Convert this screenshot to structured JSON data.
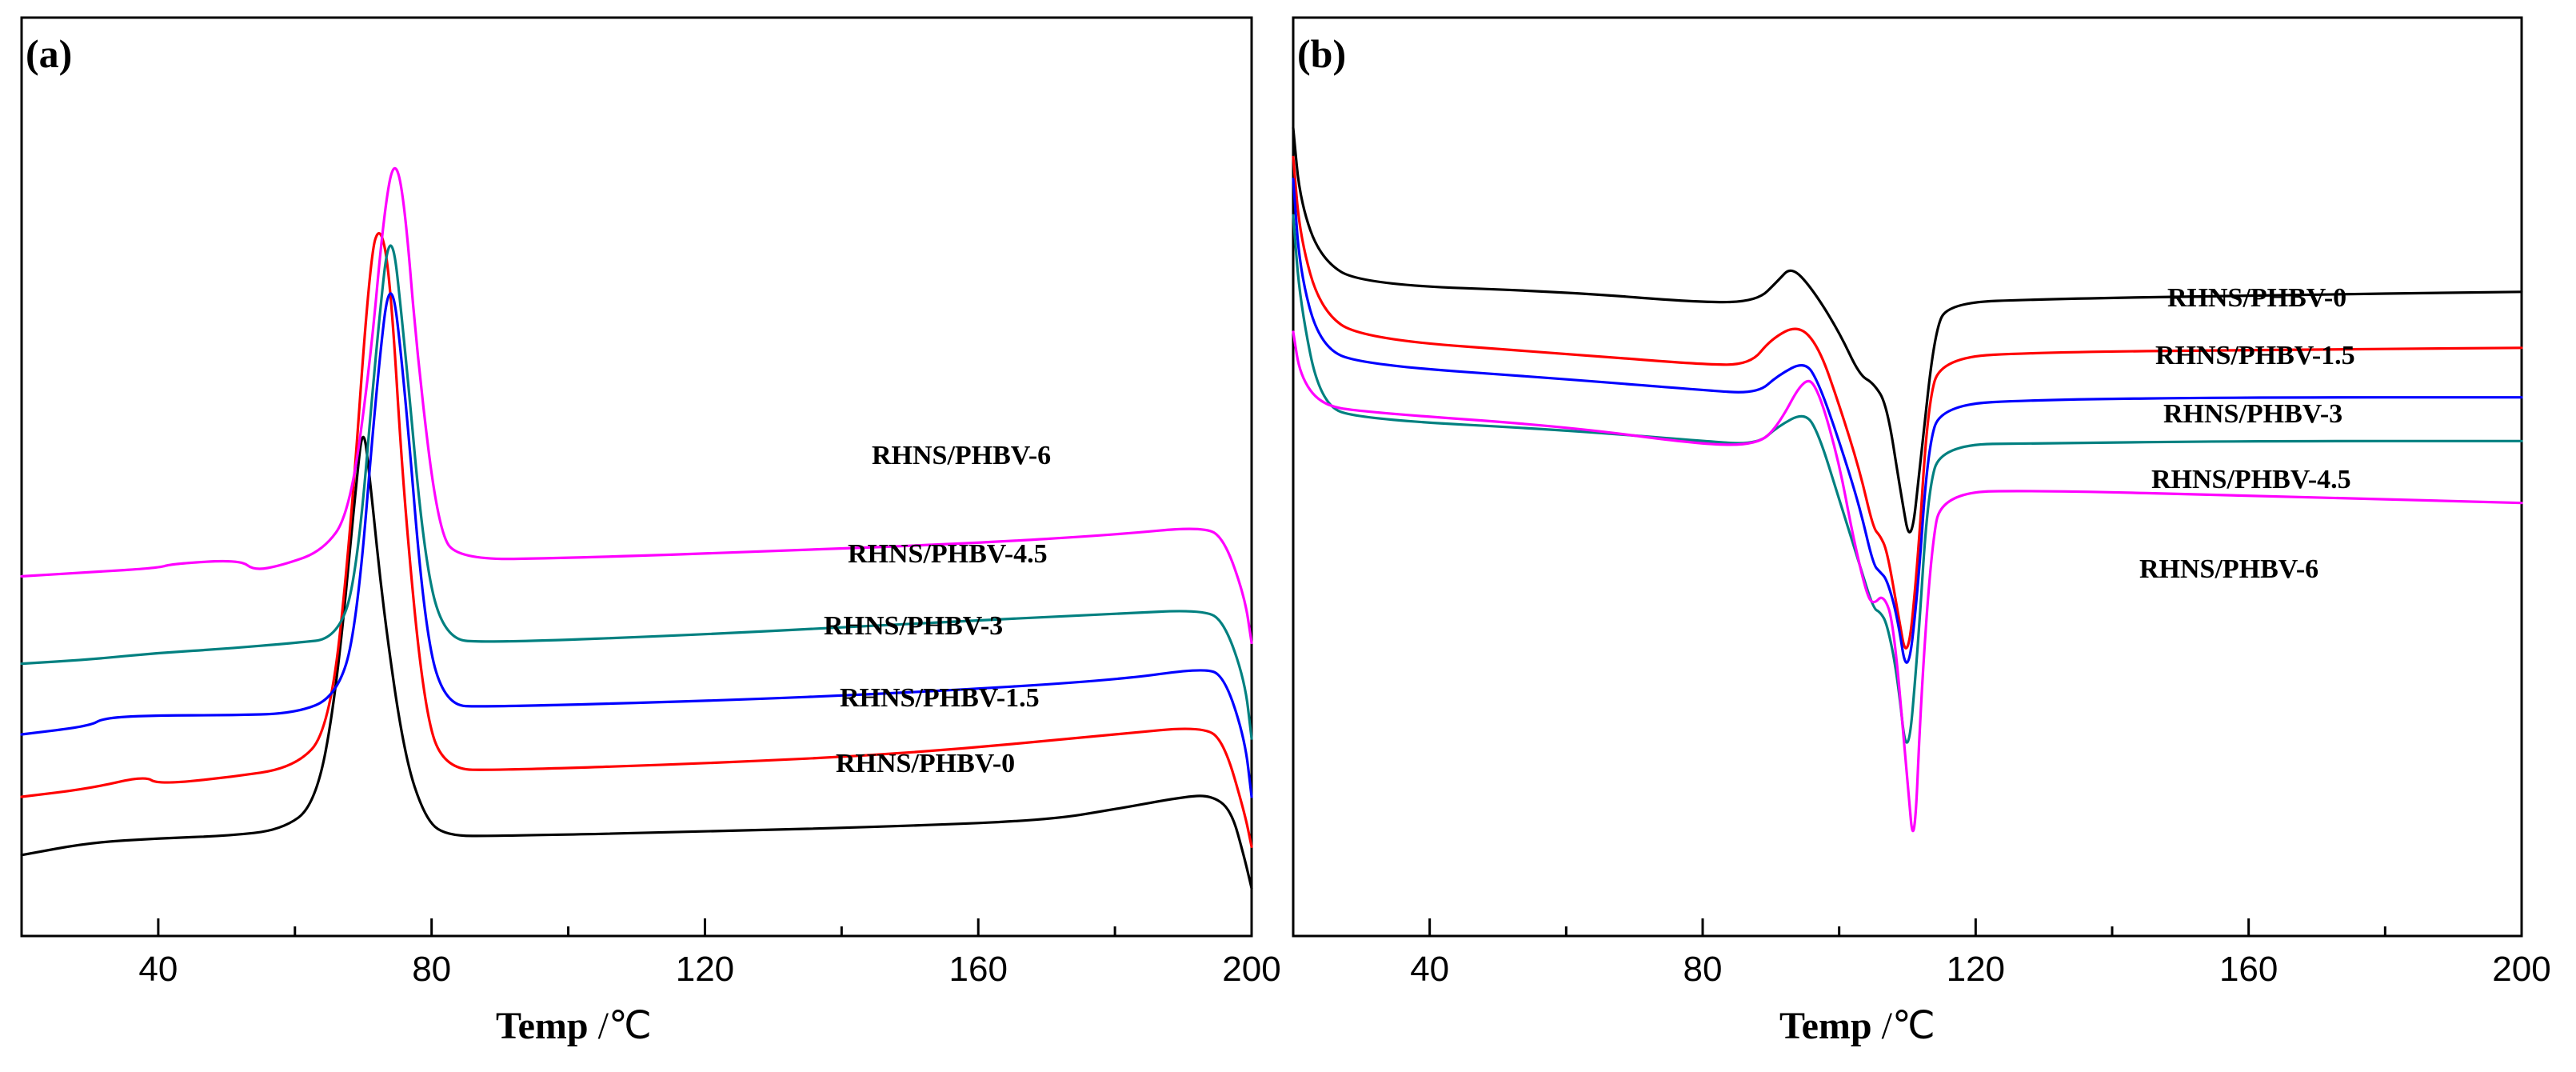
{
  "chart_data": [
    {
      "panel": "(a)",
      "type": "line",
      "xlabel": "Temp /℃",
      "ylabel": "",
      "xlim": [
        20,
        200
      ],
      "xticks": [
        40,
        80,
        120,
        160,
        200
      ],
      "xtick_labels": [
        "40",
        "80",
        "120",
        "160",
        "200"
      ],
      "y_units": "arbitrary (offset heat flow)",
      "ylim": [
        0,
        100
      ],
      "series": [
        {
          "name": "RHNS/PHBV-0",
          "color": "#000000",
          "points": [
            [
              20,
              3.0
            ],
            [
              30,
              4.5
            ],
            [
              40,
              5.0
            ],
            [
              50,
              5.3
            ],
            [
              58,
              6.0
            ],
            [
              63,
              9
            ],
            [
              66,
              22
            ],
            [
              69,
              48
            ],
            [
              70,
              55
            ],
            [
              71,
              48
            ],
            [
              73,
              32
            ],
            [
              76,
              15
            ],
            [
              79,
              7.5
            ],
            [
              82,
              5.3
            ],
            [
              90,
              5.3
            ],
            [
              120,
              5.8
            ],
            [
              150,
              6.5
            ],
            [
              170,
              7.2
            ],
            [
              180,
              8.5
            ],
            [
              190,
              10.0
            ],
            [
              194,
              10.2
            ],
            [
              197,
              8.5
            ],
            [
              199,
              2.5
            ],
            [
              200,
              -1.0
            ]
          ]
        },
        {
          "name": "RHNS/PHBV-1.5",
          "color": "#ff0000",
          "points": [
            [
              20,
              10.0
            ],
            [
              30,
              11.0
            ],
            [
              38,
              12.5
            ],
            [
              40,
              11.5
            ],
            [
              50,
              12.3
            ],
            [
              60,
              13.5
            ],
            [
              65,
              18
            ],
            [
              68,
              40
            ],
            [
              71,
              75
            ],
            [
              72.5,
              79
            ],
            [
              74,
              72
            ],
            [
              76,
              45
            ],
            [
              79,
              20
            ],
            [
              82,
              13.3
            ],
            [
              90,
              13.2
            ],
            [
              120,
              14.0
            ],
            [
              150,
              15.2
            ],
            [
              180,
              17.5
            ],
            [
              193,
              18.5
            ],
            [
              196,
              16.5
            ],
            [
              199,
              8.0
            ],
            [
              200,
              4.0
            ]
          ]
        },
        {
          "name": "RHNS/PHBV-3",
          "color": "#0000ff",
          "points": [
            [
              20,
              17.5
            ],
            [
              30,
              18.5
            ],
            [
              32,
              19.5
            ],
            [
              40,
              19.8
            ],
            [
              50,
              19.8
            ],
            [
              60,
              20.0
            ],
            [
              66,
              22
            ],
            [
              69,
              30
            ],
            [
              72,
              60
            ],
            [
              74,
              74
            ],
            [
              76,
              60
            ],
            [
              79,
              30
            ],
            [
              82,
              21
            ],
            [
              88,
              20.8
            ],
            [
              120,
              21.5
            ],
            [
              150,
              22.5
            ],
            [
              180,
              24.0
            ],
            [
              193,
              25.5
            ],
            [
              196,
              24.5
            ],
            [
              199,
              17
            ],
            [
              200,
              10.0
            ]
          ]
        },
        {
          "name": "RHNS/PHBV-4.5",
          "color": "#008080",
          "points": [
            [
              20,
              26.0
            ],
            [
              30,
              26.5
            ],
            [
              40,
              27.3
            ],
            [
              50,
              27.8
            ],
            [
              60,
              28.5
            ],
            [
              66,
              29
            ],
            [
              69,
              36
            ],
            [
              72,
              65
            ],
            [
              74,
              80
            ],
            [
              76,
              65
            ],
            [
              79,
              38
            ],
            [
              82,
              29
            ],
            [
              88,
              28.5
            ],
            [
              120,
              29.5
            ],
            [
              150,
              30.8
            ],
            [
              180,
              32.0
            ],
            [
              193,
              32.5
            ],
            [
              196,
              31
            ],
            [
              199,
              24
            ],
            [
              200,
              17.0
            ]
          ]
        },
        {
          "name": "RHNS/PHBV-6",
          "color": "#ff00ff",
          "points": [
            [
              20,
              36.5
            ],
            [
              30,
              37.0
            ],
            [
              40,
              37.5
            ],
            [
              42,
              38.0
            ],
            [
              52,
              38.5
            ],
            [
              54,
              37.2
            ],
            [
              58,
              37.8
            ],
            [
              64,
              39.5
            ],
            [
              68,
              44
            ],
            [
              71,
              62
            ],
            [
              73,
              80
            ],
            [
              74.5,
              87
            ],
            [
              76,
              82
            ],
            [
              78,
              62
            ],
            [
              81,
              42
            ],
            [
              84,
              38.5
            ],
            [
              100,
              38.7
            ],
            [
              130,
              39.5
            ],
            [
              160,
              40.5
            ],
            [
              180,
              41.5
            ],
            [
              193,
              42.5
            ],
            [
              196,
              41
            ],
            [
              199,
              34
            ],
            [
              200,
              28.5
            ]
          ]
        }
      ],
      "legend_labels": [
        "RHNS/PHBV-6",
        "RHNS/PHBV-4.5",
        "RHNS/PHBV-3",
        "RHNS/PHBV-1.5",
        "RHNS/PHBV-0"
      ]
    },
    {
      "panel": "(b)",
      "type": "line",
      "xlabel": "Temp /℃",
      "ylabel": "",
      "xlim": [
        20,
        200
      ],
      "xticks": [
        40,
        80,
        120,
        160,
        200
      ],
      "xtick_labels": [
        "40",
        "80",
        "120",
        "160",
        "200"
      ],
      "y_units": "arbitrary (offset heat flow)",
      "ylim": [
        0,
        100
      ],
      "series": [
        {
          "name": "RHNS/PHBV-0",
          "color": "#000000",
          "points": [
            [
              20,
              100
            ],
            [
              21,
              90
            ],
            [
              24,
              82
            ],
            [
              30,
              78.5
            ],
            [
              60,
              77.5
            ],
            [
              80,
              76
            ],
            [
              88,
              76.2
            ],
            [
              91,
              79
            ],
            [
              93,
              81
            ],
            [
              96,
              78
            ],
            [
              100,
              72
            ],
            [
              103,
              66
            ],
            [
              105,
              65
            ],
            [
              107,
              62
            ],
            [
              109,
              50
            ],
            [
              110.5,
              42
            ],
            [
              112,
              55
            ],
            [
              114,
              72
            ],
            [
              116,
              76
            ],
            [
              130,
              76.5
            ],
            [
              160,
              77
            ],
            [
              200,
              77.5
            ]
          ]
        },
        {
          "name": "RHNS/PHBV-1.5",
          "color": "#ff0000",
          "points": [
            [
              20,
              96
            ],
            [
              21,
              85
            ],
            [
              24,
              75
            ],
            [
              30,
              71
            ],
            [
              60,
              69
            ],
            [
              80,
              67.5
            ],
            [
              87,
              67.5
            ],
            [
              90,
              71
            ],
            [
              94,
              73
            ],
            [
              97,
              70
            ],
            [
              100,
              62
            ],
            [
              103,
              53
            ],
            [
              105,
              45
            ],
            [
              106,
              44
            ],
            [
              107,
              42
            ],
            [
              108.5,
              34
            ],
            [
              110,
              26
            ],
            [
              111.5,
              40
            ],
            [
              113,
              62
            ],
            [
              115,
              68.5
            ],
            [
              130,
              69.2
            ],
            [
              160,
              69.5
            ],
            [
              200,
              69.8
            ]
          ]
        },
        {
          "name": "RHNS/PHBV-3",
          "color": "#0000ff",
          "points": [
            [
              20,
              93
            ],
            [
              21,
              80
            ],
            [
              24,
              70
            ],
            [
              30,
              67.5
            ],
            [
              60,
              65.5
            ],
            [
              80,
              64
            ],
            [
              88,
              63.5
            ],
            [
              91,
              66
            ],
            [
              95,
              68
            ],
            [
              97,
              65
            ],
            [
              100,
              57
            ],
            [
              103,
              48
            ],
            [
              105,
              40
            ],
            [
              106,
              39
            ],
            [
              107,
              38
            ],
            [
              108.5,
              33
            ],
            [
              110,
              24
            ],
            [
              111.5,
              36
            ],
            [
              113,
              56
            ],
            [
              115,
              62
            ],
            [
              130,
              62.7
            ],
            [
              160,
              63
            ],
            [
              200,
              63
            ]
          ]
        },
        {
          "name": "RHNS/PHBV-4.5",
          "color": "#008080",
          "points": [
            [
              20,
              88
            ],
            [
              21,
              76
            ],
            [
              24,
              62
            ],
            [
              30,
              60
            ],
            [
              60,
              58.5
            ],
            [
              80,
              57
            ],
            [
              88,
              56.5
            ],
            [
              91,
              59
            ],
            [
              95,
              61
            ],
            [
              97,
              58
            ],
            [
              100,
              49
            ],
            [
              103,
              40
            ],
            [
              105,
              34
            ],
            [
              106,
              33.5
            ],
            [
              107,
              32
            ],
            [
              108.5,
              25
            ],
            [
              110,
              12
            ],
            [
              111.5,
              28
            ],
            [
              113,
              50
            ],
            [
              115,
              56.5
            ],
            [
              130,
              56.7
            ],
            [
              160,
              57
            ],
            [
              200,
              57
            ]
          ]
        },
        {
          "name": "RHNS/PHBV-6",
          "color": "#ff00ff",
          "points": [
            [
              20,
              72
            ],
            [
              21,
              66
            ],
            [
              24,
              62
            ],
            [
              30,
              61
            ],
            [
              60,
              59
            ],
            [
              80,
              56.5
            ],
            [
              88,
              56.5
            ],
            [
              91,
              59
            ],
            [
              95,
              66
            ],
            [
              97,
              64
            ],
            [
              100,
              54
            ],
            [
              102,
              44
            ],
            [
              104,
              36
            ],
            [
              105,
              34.5
            ],
            [
              106.5,
              36
            ],
            [
              108,
              32
            ],
            [
              110,
              10
            ],
            [
              111,
              0
            ],
            [
              112,
              22
            ],
            [
              113.5,
              42
            ],
            [
              115,
              50
            ],
            [
              130,
              50.2
            ],
            [
              160,
              49.5
            ],
            [
              200,
              48.5
            ]
          ]
        }
      ],
      "legend_labels": [
        "RHNS/PHBV-0",
        "RHNS/PHBV-1.5",
        "RHNS/PHBV-3",
        "RHNS/PHBV-4.5",
        "RHNS/PHBV-6"
      ]
    }
  ],
  "panels": {
    "a": {
      "tag": "(a)",
      "x_title_bold": "Temp",
      "x_title_unit": " /℃"
    },
    "b": {
      "tag": "(b)",
      "x_title_bold": "Temp",
      "x_title_unit": " /℃"
    }
  }
}
